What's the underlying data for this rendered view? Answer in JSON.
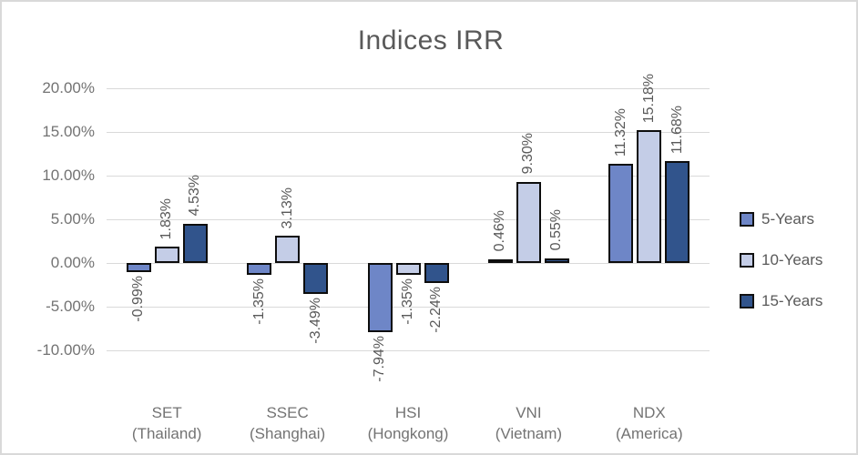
{
  "window": {
    "background": "#ffffff",
    "border_color": "#d9d9d9"
  },
  "chart_data": {
    "type": "bar",
    "title": "Indices IRR",
    "categories": [
      {
        "label_line1": "SET",
        "label_line2": "(Thailand)"
      },
      {
        "label_line1": "SSEC",
        "label_line2": "(Shanghai)"
      },
      {
        "label_line1": "HSI",
        "label_line2": "(Hongkong)"
      },
      {
        "label_line1": "VNI",
        "label_line2": "(Vietnam)"
      },
      {
        "label_line1": "NDX",
        "label_line2": "(America)"
      }
    ],
    "series": [
      {
        "name": "5-Years",
        "color": "#6e86c7",
        "values": [
          -0.99,
          -1.35,
          -7.94,
          0.46,
          11.32
        ],
        "value_labels": [
          "-0.99%",
          "-1.35%",
          "-7.94%",
          "0.46%",
          "11.32%"
        ]
      },
      {
        "name": "10-Years",
        "color": "#c4cde7",
        "values": [
          1.83,
          3.13,
          -1.35,
          9.3,
          15.18
        ],
        "value_labels": [
          "1.83%",
          "3.13%",
          "-1.35%",
          "9.30%",
          "15.18%"
        ]
      },
      {
        "name": "15-Years",
        "color": "#31548c",
        "values": [
          4.53,
          -3.49,
          -2.24,
          0.55,
          11.68
        ],
        "value_labels": [
          "4.53%",
          "-3.49%",
          "-2.24%",
          "0.55%",
          "11.68%"
        ]
      }
    ],
    "y_axis": {
      "tick_labels": [
        "20.00%",
        "15.00%",
        "10.00%",
        "5.00%",
        "0.00%",
        "-5.00%",
        "-10.00%"
      ],
      "tick_values": [
        20,
        15,
        10,
        5,
        0,
        -5,
        -10
      ],
      "min": -10,
      "max": 20
    },
    "grid": true,
    "legend_position": "right",
    "data_labels_rotated": true,
    "bar_outline_color": "#0d0d0d",
    "gridline_color": "#d9d9d9"
  }
}
